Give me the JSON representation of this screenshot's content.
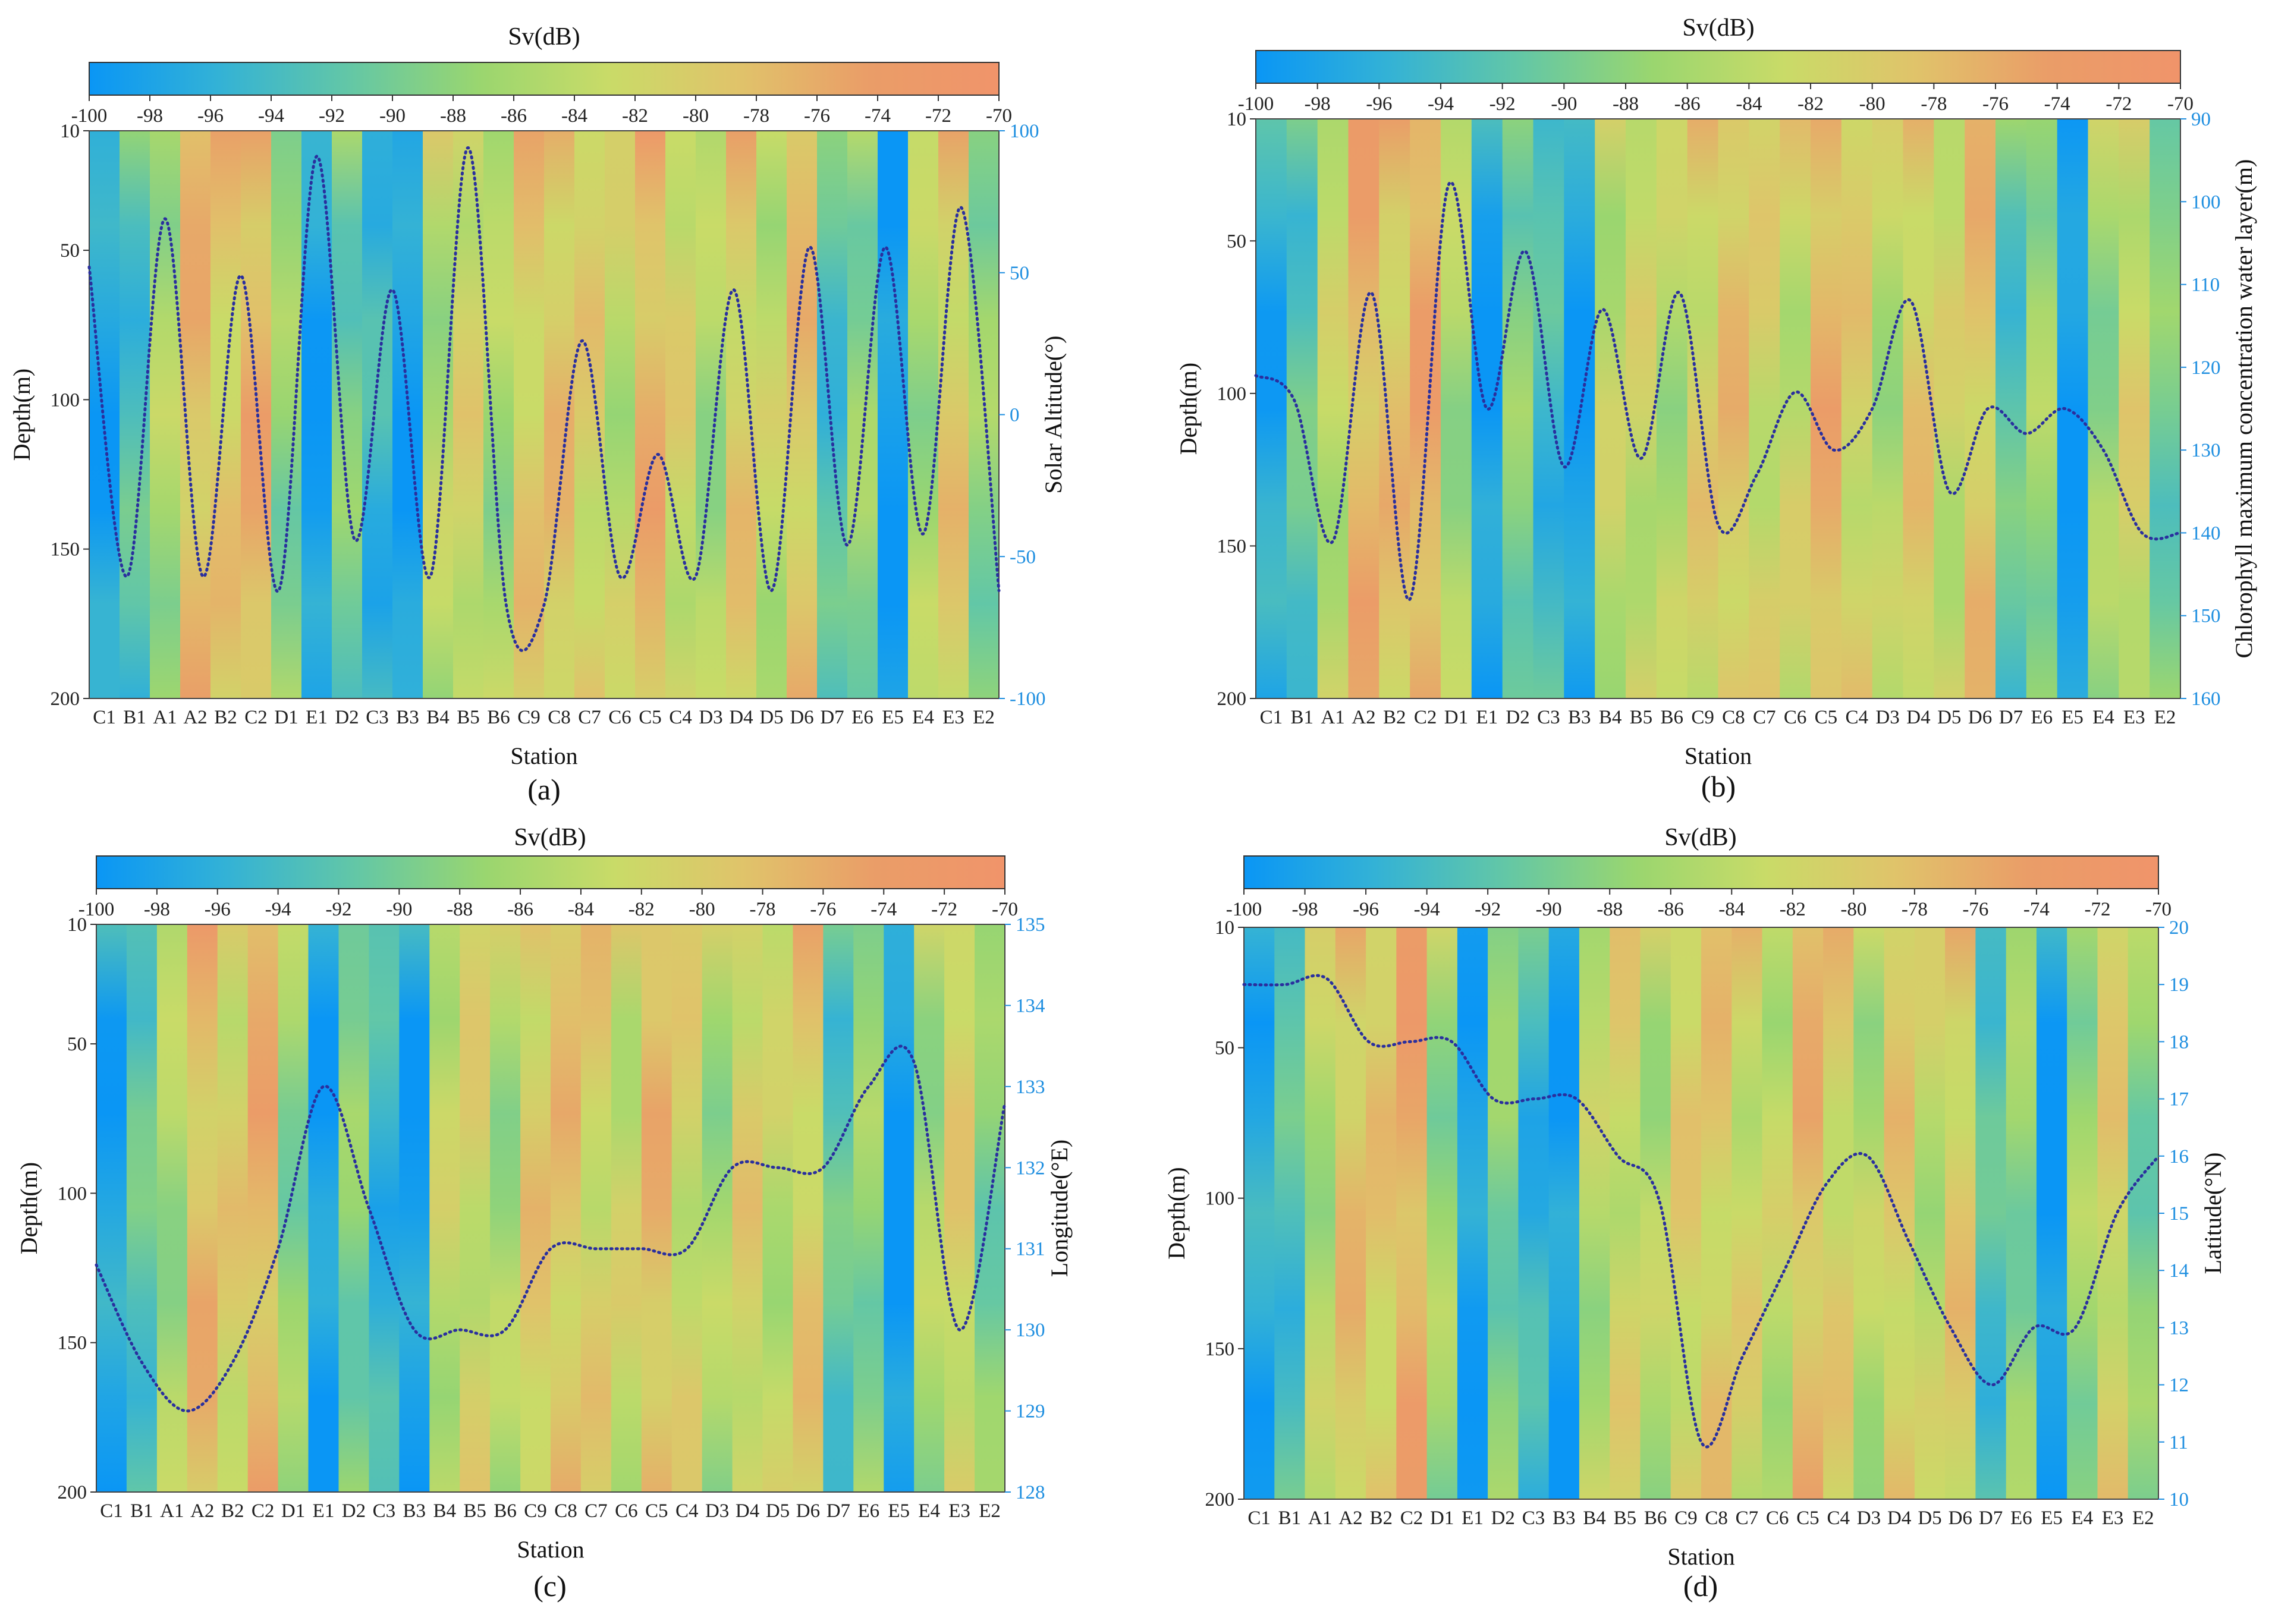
{
  "colors": {
    "accent_axis": "#1f8fe0",
    "overlay_line": "#2a2f9e",
    "colormap": [
      "#0a96f5",
      "#33b2d6",
      "#63c7a6",
      "#9ad66f",
      "#c9db68",
      "#e0c36a",
      "#ea9d68",
      "#f0946a"
    ]
  },
  "chart_data": [
    {
      "type": "heatmap",
      "panel": "(a)",
      "colorbar": {
        "title": "Sv(dB)",
        "range": [
          -100,
          -70
        ],
        "ticks": [
          "-100",
          "-98",
          "-96",
          "-94",
          "-92",
          "-90",
          "-88",
          "-86",
          "-84",
          "-82",
          "-80",
          "-78",
          "-76",
          "-74",
          "-72",
          "-70"
        ]
      },
      "xlabel": "Station",
      "categories": [
        "C1",
        "B1",
        "A1",
        "A2",
        "B2",
        "C2",
        "D1",
        "E1",
        "D2",
        "C3",
        "B3",
        "B4",
        "B5",
        "B6",
        "C9",
        "C8",
        "C7",
        "C6",
        "C5",
        "C4",
        "D3",
        "D4",
        "D5",
        "D6",
        "D7",
        "E6",
        "E5",
        "E4",
        "E3",
        "E2"
      ],
      "ylabel": "Depth(m)",
      "ylim": [
        10,
        200
      ],
      "yticks": [
        "10",
        "50",
        "100",
        "150",
        "200"
      ],
      "heat_columns_sv": [
        -98,
        -93,
        -86,
        -78,
        -80,
        -77,
        -88,
        -99,
        -90,
        -95,
        -99,
        -85,
        -82,
        -86,
        -80,
        -79,
        -81,
        -84,
        -77,
        -82,
        -86,
        -80,
        -84,
        -79,
        -93,
        -88,
        -100,
        -86,
        -80,
        -88
      ],
      "y2label": "Solar Altitude(°)",
      "y2lim": [
        -100,
        100
      ],
      "y2ticks": [
        "100",
        "50",
        "0",
        "-50",
        "-100"
      ],
      "overlay_series": {
        "name": "Solar Altitude(°)",
        "style": "dotted",
        "values": [
          52,
          -57,
          69,
          -57,
          49,
          -62,
          91,
          -44,
          44,
          -57,
          94,
          -67,
          -67,
          26,
          -57,
          -14,
          -57,
          44,
          -62,
          59,
          -46,
          59,
          -42,
          73,
          -62
        ]
      }
    },
    {
      "type": "heatmap",
      "panel": "(b)",
      "colorbar": {
        "title": "Sv(dB)",
        "range": [
          -100,
          -70
        ],
        "ticks": [
          "-100",
          "-98",
          "-96",
          "-94",
          "-92",
          "-90",
          "-88",
          "-86",
          "-84",
          "-82",
          "-80",
          "-78",
          "-76",
          "-74",
          "-72",
          "-70"
        ]
      },
      "xlabel": "Station",
      "categories": [
        "C1",
        "B1",
        "A1",
        "A2",
        "B2",
        "C2",
        "D1",
        "E1",
        "D2",
        "C3",
        "B3",
        "B4",
        "B5",
        "B6",
        "C9",
        "C8",
        "C7",
        "C6",
        "C5",
        "C4",
        "D3",
        "D4",
        "D5",
        "D6",
        "D7",
        "E6",
        "E5",
        "E4",
        "E3",
        "E2"
      ],
      "ylabel": "Depth(m)",
      "ylim": [
        10,
        200
      ],
      "yticks": [
        "10",
        "50",
        "100",
        "150",
        "200"
      ],
      "heat_columns_sv": [
        -97,
        -92,
        -84,
        -77,
        -79,
        -76,
        -86,
        -99,
        -89,
        -94,
        -99,
        -84,
        -83,
        -85,
        -81,
        -79,
        -82,
        -83,
        -77,
        -81,
        -85,
        -80,
        -83,
        -79,
        -92,
        -87,
        -100,
        -87,
        -82,
        -90
      ],
      "y2label": "Chlorophyll maximum concentration water layer(m)",
      "y2lim": [
        90,
        160
      ],
      "y2ticks": [
        "90",
        "100",
        "110",
        "120",
        "130",
        "140",
        "150",
        "160"
      ],
      "overlay_series": {
        "name": "Chlorophyll maximum concentration water layer(m)",
        "style": "dotted",
        "values": [
          121,
          124,
          141,
          111,
          148,
          98,
          125,
          106,
          132,
          113,
          131,
          111,
          139,
          133,
          123,
          130,
          125,
          112,
          135,
          125,
          128,
          125,
          130,
          140,
          140
        ]
      }
    },
    {
      "type": "heatmap",
      "panel": "(c)",
      "colorbar": {
        "title": "Sv(dB)",
        "range": [
          -100,
          -70
        ],
        "ticks": [
          "-100",
          "-98",
          "-96",
          "-94",
          "-92",
          "-90",
          "-88",
          "-86",
          "-84",
          "-82",
          "-80",
          "-78",
          "-76",
          "-74",
          "-72",
          "-70"
        ]
      },
      "xlabel": "Station",
      "categories": [
        "C1",
        "B1",
        "A1",
        "A2",
        "B2",
        "C2",
        "D1",
        "E1",
        "D2",
        "C3",
        "B3",
        "B4",
        "B5",
        "B6",
        "C9",
        "C8",
        "C7",
        "C6",
        "C5",
        "C4",
        "D3",
        "D4",
        "D5",
        "D6",
        "D7",
        "E6",
        "E5",
        "E4",
        "E3",
        "E2"
      ],
      "ylabel": "Depth(m)",
      "ylim": [
        10,
        200
      ],
      "yticks": [
        "10",
        "50",
        "100",
        "150",
        "200"
      ],
      "heat_columns_sv": [
        -98,
        -92,
        -86,
        -78,
        -81,
        -77,
        -88,
        -99,
        -89,
        -95,
        -99,
        -84,
        -82,
        -86,
        -80,
        -79,
        -81,
        -83,
        -78,
        -82,
        -86,
        -81,
        -84,
        -80,
        -92,
        -88,
        -100,
        -86,
        -81,
        -89
      ],
      "y2label": "Longitude(°E)",
      "y2lim": [
        128,
        135
      ],
      "y2ticks": [
        "128",
        "129",
        "130",
        "131",
        "132",
        "133",
        "134",
        "135"
      ],
      "overlay_series": {
        "name": "Longitude(°E)",
        "style": "dotted",
        "values": [
          130.8,
          129.6,
          129.0,
          129.6,
          131.0,
          133.0,
          131.5,
          130.0,
          130.0,
          130.0,
          131.0,
          131.0,
          131.0,
          131.0,
          132.0,
          132.0,
          132.0,
          133.0,
          133.3,
          130.0,
          132.8
        ]
      }
    },
    {
      "type": "heatmap",
      "panel": "(d)",
      "colorbar": {
        "title": "Sv(dB)",
        "range": [
          -100,
          -70
        ],
        "ticks": [
          "-100",
          "-98",
          "-96",
          "-94",
          "-92",
          "-90",
          "-88",
          "-86",
          "-84",
          "-82",
          "-80",
          "-78",
          "-76",
          "-74",
          "-72",
          "-70"
        ]
      },
      "xlabel": "Station",
      "categories": [
        "C1",
        "B1",
        "A1",
        "A2",
        "B2",
        "C2",
        "D1",
        "E1",
        "D2",
        "C3",
        "B3",
        "B4",
        "B5",
        "B6",
        "C9",
        "C8",
        "C7",
        "C6",
        "C5",
        "C4",
        "D3",
        "D4",
        "D5",
        "D6",
        "D7",
        "E6",
        "E5",
        "E4",
        "E3",
        "E2"
      ],
      "ylabel": "Depth(m)",
      "ylim": [
        10,
        200
      ],
      "yticks": [
        "10",
        "50",
        "100",
        "150",
        "200"
      ],
      "heat_columns_sv": [
        -97,
        -93,
        -85,
        -79,
        -80,
        -76,
        -87,
        -99,
        -89,
        -95,
        -99,
        -85,
        -82,
        -85,
        -81,
        -80,
        -82,
        -84,
        -78,
        -81,
        -85,
        -80,
        -84,
        -80,
        -93,
        -88,
        -100,
        -87,
        -81,
        -89
      ],
      "y2label": "Latitude(°N)",
      "y2lim": [
        10,
        20
      ],
      "y2ticks": [
        "10",
        "11",
        "12",
        "13",
        "14",
        "15",
        "16",
        "17",
        "18",
        "19",
        "20"
      ],
      "overlay_series": {
        "name": "Latitude(°N)",
        "style": "dotted",
        "values": [
          19,
          19,
          19.1,
          18,
          18,
          18,
          17,
          17,
          17,
          16,
          15.2,
          11,
          12.5,
          14,
          15.5,
          16,
          14.5,
          13,
          12,
          13,
          13,
          15,
          16
        ]
      }
    }
  ],
  "captions": [
    "(a)",
    "(b)",
    "(c)",
    "(d)"
  ]
}
